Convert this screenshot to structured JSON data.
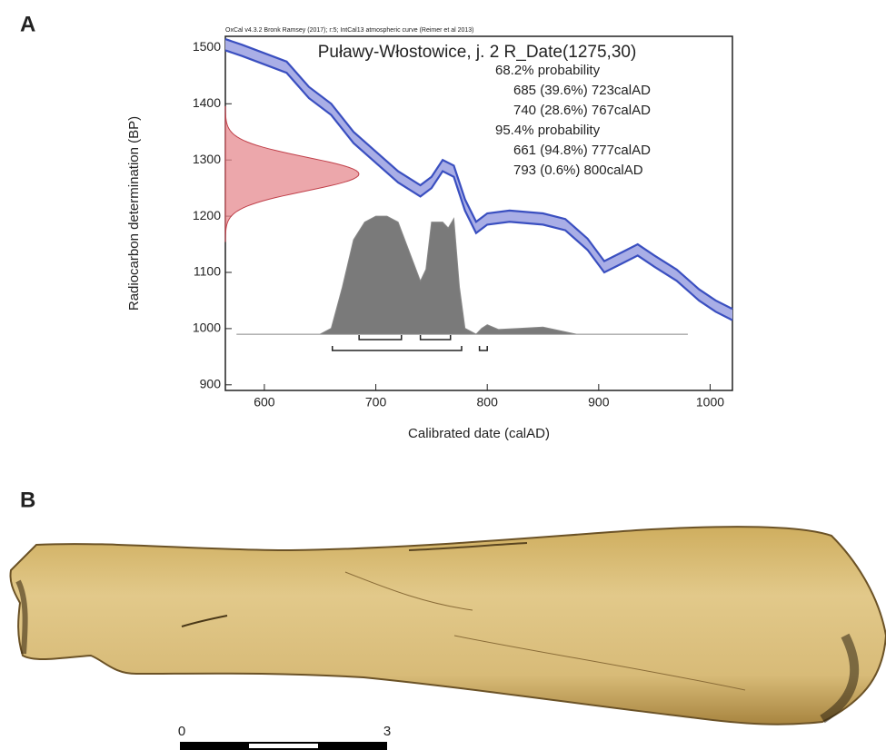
{
  "panel_labels": [
    "A",
    "B"
  ],
  "chart_data": {
    "type": "calibration",
    "header": "OxCal v4.3.2 Bronk Ramsey (2017); r:5; IntCal13 atmospheric curve (Reimer et al 2013)",
    "title": "Puławy-Włostowice, j. 2 R_Date(1275,30)",
    "x_label": "Calibrated date (calAD)",
    "y_label": "Radiocarbon determination (BP)",
    "xlim": [
      565,
      1020
    ],
    "xticks": [
      600,
      700,
      800,
      900,
      1000
    ],
    "ylim": [
      890,
      1520
    ],
    "yticks": [
      900,
      1000,
      1100,
      1200,
      1300,
      1400,
      1500
    ],
    "curve": {
      "color": "#3a4fc0",
      "fill": "#a9aee6",
      "x": [
        565,
        580,
        600,
        620,
        640,
        660,
        680,
        700,
        720,
        740,
        750,
        760,
        770,
        780,
        790,
        800,
        820,
        850,
        870,
        890,
        905,
        920,
        935,
        950,
        970,
        990,
        1005,
        1020
      ],
      "values": [
        1505,
        1495,
        1480,
        1465,
        1420,
        1390,
        1340,
        1305,
        1270,
        1245,
        1260,
        1290,
        1280,
        1220,
        1180,
        1195,
        1200,
        1195,
        1185,
        1150,
        1110,
        1125,
        1140,
        1120,
        1095,
        1060,
        1040,
        1025
      ],
      "errors": [
        10,
        10,
        10,
        10,
        10,
        10,
        10,
        10,
        10,
        10,
        10,
        10,
        10,
        10,
        10,
        10,
        10,
        10,
        10,
        10,
        10,
        10,
        10,
        10,
        10,
        10,
        10,
        10
      ]
    },
    "measurement": {
      "mean": 1275,
      "sd": 30,
      "color": "#e58a8f"
    },
    "posterior": {
      "color": "#7a7a7a",
      "x": [
        575,
        650,
        660,
        670,
        680,
        690,
        700,
        710,
        720,
        730,
        740,
        745,
        750,
        760,
        765,
        770,
        775,
        780,
        790,
        795,
        800,
        810,
        830,
        850,
        870,
        880,
        980
      ],
      "density": [
        0,
        0,
        5,
        40,
        80,
        95,
        100,
        100,
        95,
        70,
        45,
        55,
        95,
        95,
        90,
        98,
        40,
        5,
        0,
        5,
        8,
        4,
        5,
        6,
        2,
        0,
        0
      ]
    },
    "ranges": [
      {
        "label": "68.2% probability",
        "intervals": [
          {
            "text": "685 (39.6%) 723calAD",
            "from": 685,
            "to": 723
          },
          {
            "text": "740 (28.6%) 767calAD",
            "from": 740,
            "to": 767
          }
        ]
      },
      {
        "label": "95.4% probability",
        "intervals": [
          {
            "text": "661 (94.8%) 777calAD",
            "from": 661,
            "to": 777
          },
          {
            "text": "793 (0.6%) 800calAD",
            "from": 793,
            "to": 800
          }
        ]
      }
    ]
  },
  "scale_bar": {
    "labels": [
      "0",
      "3"
    ]
  }
}
